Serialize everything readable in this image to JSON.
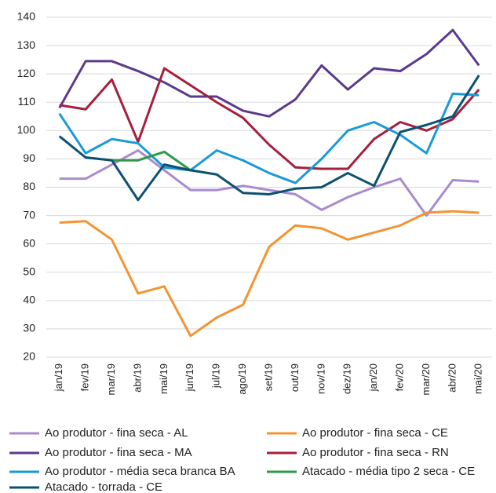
{
  "chart_data": {
    "type": "line",
    "categories": [
      "jan/19",
      "fev/19",
      "mar/19",
      "abr/19",
      "mai/19",
      "jun/19",
      "jul/19",
      "ago/19",
      "set/19",
      "out/19",
      "nov/19",
      "dez/19",
      "jan/20",
      "fev/20",
      "mar/20",
      "abr/20",
      "mai/20"
    ],
    "ylim": [
      20,
      140
    ],
    "yticks": [
      20,
      30,
      40,
      50,
      60,
      70,
      80,
      90,
      100,
      110,
      120,
      130,
      140
    ],
    "grid": true,
    "series": [
      {
        "name": "Ao produtor - fina seca - AL",
        "color": "#a88bd0",
        "values": [
          83,
          83,
          88,
          93,
          86,
          79,
          79,
          80.5,
          79,
          77.5,
          72,
          76.5,
          80,
          83,
          70,
          82.5,
          82
        ]
      },
      {
        "name": "Ao produtor - fina seca - CE",
        "color": "#f39433",
        "values": [
          67.5,
          68,
          61.5,
          42.5,
          45,
          27.5,
          34,
          38.5,
          59,
          66.5,
          65.5,
          61.5,
          64,
          66.5,
          71,
          71.5,
          71
        ]
      },
      {
        "name": "Ao produtor - fina seca - MA",
        "color": "#5b3a8c",
        "values": [
          108,
          124.5,
          124.5,
          121,
          117,
          112,
          112,
          107,
          105,
          111,
          123,
          114.5,
          122,
          121,
          127,
          135.5,
          123
        ]
      },
      {
        "name": "Ao produtor - fina seca - RN",
        "color": "#a4203e",
        "values": [
          109,
          107.5,
          118,
          96,
          122,
          116,
          110,
          104.5,
          95,
          87,
          86.5,
          86.5,
          97,
          103,
          100,
          104,
          114.5
        ]
      },
      {
        "name": "Ao produtor - média seca branca BA",
        "color": "#1a9ad6",
        "values": [
          106,
          92,
          97,
          95.5,
          87,
          86,
          93,
          89.5,
          85,
          81.5,
          90,
          100,
          103,
          98.5,
          92,
          113,
          112.5
        ]
      },
      {
        "name": "Atacado - média tipo 2 seca - CE",
        "color": "#2e9a48",
        "values": [
          null,
          90.5,
          89.5,
          89.5,
          92.5,
          86,
          null,
          null,
          null,
          null,
          null,
          null,
          null,
          null,
          null,
          null,
          null
        ]
      },
      {
        "name": "Atacado - torrada - CE",
        "color": "#0d5071",
        "values": [
          98,
          90.5,
          89.5,
          75.5,
          88,
          86,
          84.5,
          78,
          77.5,
          79.5,
          80,
          85,
          80.5,
          99.5,
          102,
          105,
          119.5
        ]
      }
    ]
  }
}
